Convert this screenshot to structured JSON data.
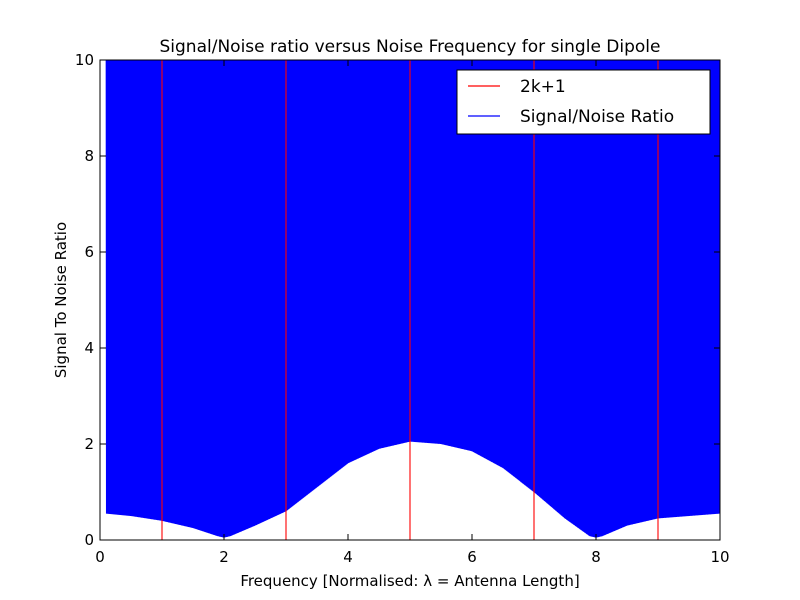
{
  "chart_data": {
    "type": "line",
    "title": "Signal/Noise ratio versus Noise Frequency for single Dipole",
    "xlabel": "Frequency [Normalised: λ = Antenna Length]",
    "ylabel": "Signal To Noise Ratio",
    "xlim": [
      0,
      10
    ],
    "ylim": [
      0,
      10
    ],
    "x_ticks": [
      "0",
      "2",
      "4",
      "6",
      "8",
      "10"
    ],
    "y_ticks": [
      "0",
      "2",
      "4",
      "6",
      "8",
      "10"
    ],
    "grid": false,
    "legend_position": "top-right",
    "series": [
      {
        "name": "2k+1",
        "color": "#ff0000",
        "kind": "vertical-lines",
        "x": [
          1,
          3,
          5,
          7,
          9
        ]
      },
      {
        "name": "Signal/Noise Ratio",
        "color": "#0000ff",
        "kind": "oscillating-envelope",
        "x_range": [
          0.1,
          10
        ],
        "envelope_x": [
          0.1,
          0.5,
          1.0,
          1.5,
          1.9,
          2.0,
          2.1,
          2.5,
          3.0,
          3.5,
          4.0,
          4.5,
          5.0,
          5.5,
          6.0,
          6.5,
          7.0,
          7.5,
          7.9,
          8.0,
          8.1,
          8.5,
          9.0,
          9.5,
          10.0
        ],
        "envelope_min": [
          0.55,
          0.5,
          0.4,
          0.25,
          0.08,
          0.05,
          0.08,
          0.3,
          0.6,
          1.1,
          1.6,
          1.9,
          2.05,
          2.0,
          1.85,
          1.5,
          1.0,
          0.45,
          0.08,
          0.05,
          0.08,
          0.3,
          0.45,
          0.5,
          0.55
        ],
        "envelope_max": [
          10,
          10,
          10,
          10,
          10,
          10,
          10,
          10,
          10,
          10,
          10,
          10,
          10,
          10,
          10,
          10,
          10,
          10,
          10,
          10,
          10,
          10,
          10,
          10,
          10
        ]
      }
    ]
  }
}
